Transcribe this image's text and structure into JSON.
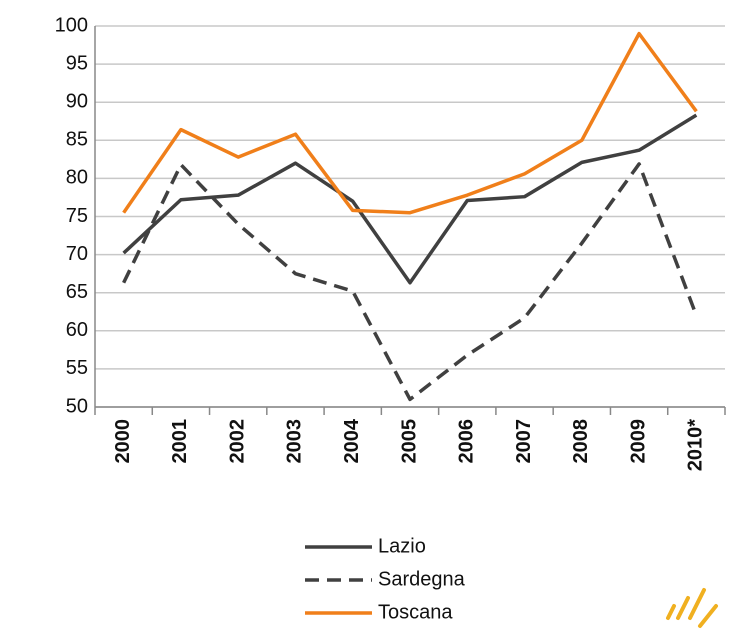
{
  "chart_data": {
    "type": "line",
    "categories": [
      "2000",
      "2001",
      "2002",
      "2003",
      "2004",
      "2005",
      "2006",
      "2007",
      "2008",
      "2009",
      "2010*"
    ],
    "series": [
      {
        "name": "Lazio",
        "color": "#404040",
        "line_style": "solid",
        "values": [
          70.2,
          77.2,
          77.8,
          82.0,
          77.0,
          66.3,
          77.1,
          77.6,
          82.1,
          83.7,
          88.3
        ]
      },
      {
        "name": "Sardegna",
        "color": "#404040",
        "line_style": "dashed",
        "values": [
          66.3,
          81.8,
          74.0,
          67.5,
          65.2,
          51.0,
          56.8,
          61.7,
          71.5,
          81.9,
          62.0
        ]
      },
      {
        "name": "Toscana",
        "color": "#f07f1a",
        "line_style": "solid",
        "values": [
          75.5,
          86.4,
          82.8,
          85.8,
          75.8,
          75.5,
          77.8,
          80.6,
          85.0,
          99.0,
          88.8
        ]
      }
    ],
    "ylim": [
      50,
      100
    ],
    "yticks": [
      50,
      55,
      60,
      65,
      70,
      75,
      80,
      85,
      90,
      95,
      100
    ],
    "grid": true,
    "legend": "bottom"
  }
}
